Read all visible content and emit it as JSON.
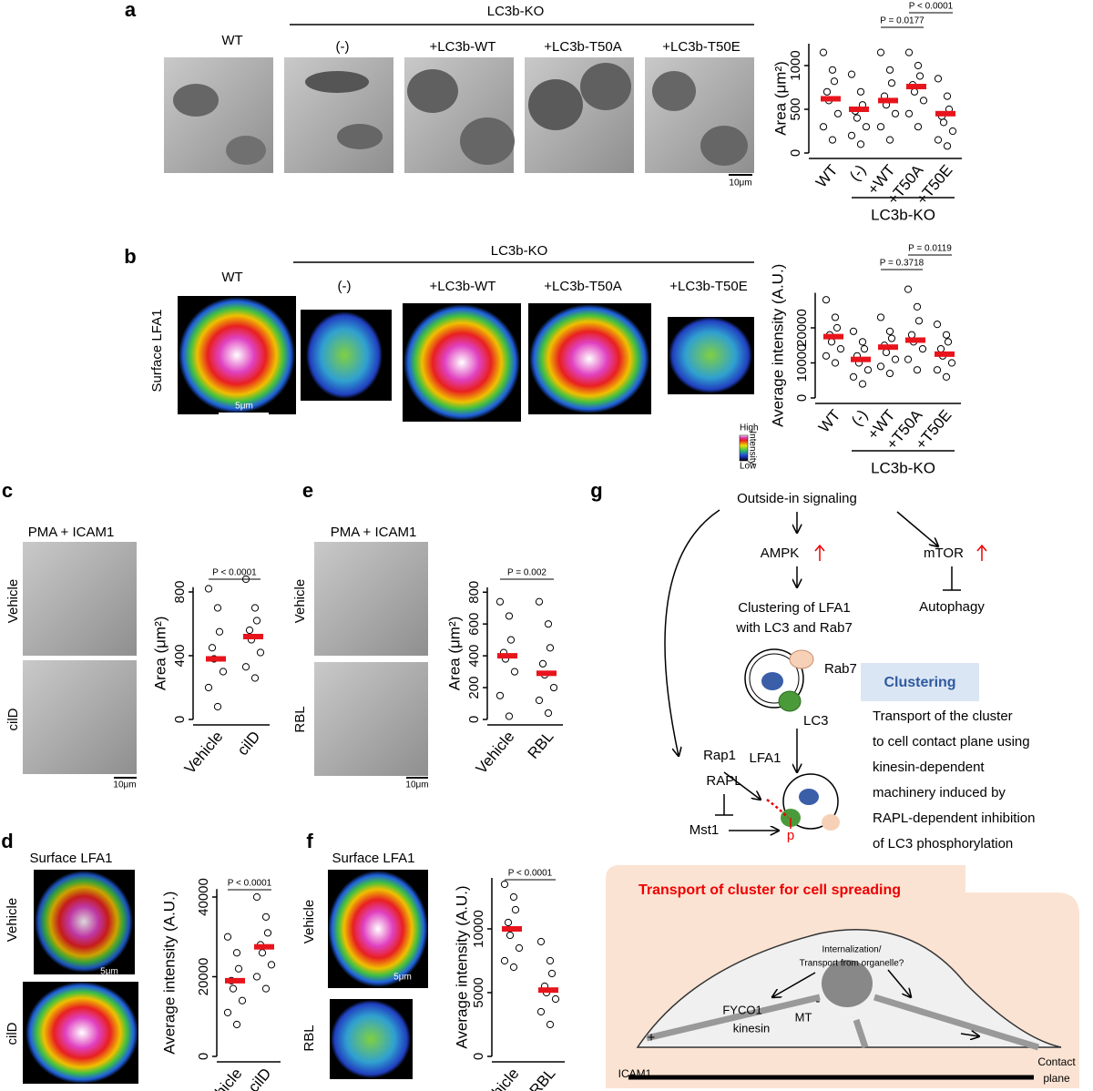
{
  "panel_a": {
    "label": "a",
    "group": "LC3b-KO",
    "columns": [
      "WT",
      "(-)",
      "+LC3b-WT",
      "+LC3b-T50A",
      "+LC3b-T50E"
    ],
    "scale_bar": "10μm",
    "chart": {
      "type": "dotplot",
      "ylabel": "Area (μm²)",
      "categories": [
        "WT",
        "(-)",
        "+WT",
        "+T50A",
        "+T50E"
      ],
      "group": "LC3b-KO",
      "ylim": [
        0,
        1250
      ],
      "yticks": [
        0,
        500,
        1000
      ],
      "means": [
        620,
        500,
        600,
        760,
        450
      ],
      "points": [
        [
          1150,
          950,
          820,
          700,
          600,
          450,
          300,
          150
        ],
        [
          900,
          700,
          550,
          480,
          400,
          300,
          200,
          100
        ],
        [
          1150,
          950,
          800,
          650,
          550,
          450,
          300,
          150
        ],
        [
          1150,
          1000,
          880,
          780,
          700,
          600,
          450,
          300
        ],
        [
          850,
          650,
          500,
          420,
          350,
          250,
          150,
          80
        ]
      ],
      "comparisons": [
        "P = 0.0177",
        "P < 0.0001"
      ]
    }
  },
  "panel_b": {
    "label": "b",
    "group": "LC3b-KO",
    "columns": [
      "WT",
      "(-)",
      "+LC3b-WT",
      "+LC3b-T50A",
      "+LC3b-T50E"
    ],
    "row_label": "Surface LFA1",
    "scale_bar": "5μm",
    "colorbar": [
      "High",
      "Intensity",
      "Low"
    ],
    "chart": {
      "type": "dotplot",
      "ylabel": "Average intensity (A.U.)",
      "categories": [
        "WT",
        "(-)",
        "+WT",
        "+T50A",
        "+T50E"
      ],
      "group": "LC3b-KO",
      "ylim": [
        0,
        30000
      ],
      "yticks": [
        0,
        10000,
        20000
      ],
      "means": [
        17500,
        11000,
        14500,
        16500,
        12500
      ],
      "points": [
        [
          28000,
          23000,
          20000,
          18000,
          16000,
          14000,
          12000,
          10000
        ],
        [
          19000,
          16000,
          14000,
          12000,
          10000,
          8000,
          6000,
          4000
        ],
        [
          23000,
          19000,
          17000,
          15000,
          13000,
          11000,
          9000,
          7000
        ],
        [
          31000,
          26000,
          22000,
          18000,
          16000,
          14000,
          11000,
          8000
        ],
        [
          21000,
          18000,
          16000,
          14000,
          12000,
          10000,
          8000,
          6000
        ]
      ],
      "comparisons": [
        "P = 0.3718",
        "P = 0.0119"
      ]
    }
  },
  "panel_c": {
    "label": "c",
    "condition": "PMA + ICAM1",
    "rows": [
      "Vehicle",
      "cilD"
    ],
    "scale_bar": "10μm",
    "chart": {
      "type": "dotplot",
      "ylabel": "Area (μm²)",
      "categories": [
        "Vehicle",
        "cilD"
      ],
      "ylim": [
        0,
        830
      ],
      "yticks": [
        0,
        400,
        800
      ],
      "means": [
        380,
        520
      ],
      "points": [
        [
          820,
          700,
          550,
          450,
          380,
          300,
          200,
          80
        ],
        [
          880,
          700,
          620,
          560,
          500,
          420,
          330,
          260
        ]
      ],
      "comparisons": [
        "P < 0.0001"
      ]
    }
  },
  "panel_d": {
    "label": "d",
    "condition": "Surface LFA1",
    "rows": [
      "Vehicle",
      "cilD"
    ],
    "scale_bar": "5μm",
    "chart": {
      "type": "dotplot",
      "ylabel": "Average intensity (A.U.)",
      "categories": [
        "Vehicle",
        "cilD"
      ],
      "ylim": [
        0,
        42000
      ],
      "yticks": [
        0,
        20000,
        40000
      ],
      "means": [
        19000,
        27500
      ],
      "points": [
        [
          30000,
          26000,
          22000,
          19000,
          17000,
          14000,
          11000,
          8000
        ],
        [
          40000,
          35000,
          31000,
          28000,
          26000,
          23000,
          20000,
          17000
        ]
      ],
      "comparisons": [
        "P < 0.0001"
      ]
    }
  },
  "panel_e": {
    "label": "e",
    "condition": "PMA + ICAM1",
    "rows": [
      "Vehicle",
      "RBL"
    ],
    "scale_bar": "10μm",
    "chart": {
      "type": "dotplot",
      "ylabel": "Area (μm²)",
      "categories": [
        "Vehicle",
        "RBL"
      ],
      "ylim": [
        0,
        830
      ],
      "yticks": [
        0,
        200,
        400,
        600,
        800
      ],
      "means": [
        400,
        290
      ],
      "points": [
        [
          740,
          650,
          500,
          420,
          380,
          300,
          150,
          20
        ],
        [
          740,
          600,
          450,
          350,
          280,
          200,
          120,
          40
        ]
      ],
      "comparisons": [
        "P = 0.002"
      ]
    }
  },
  "panel_f": {
    "label": "f",
    "condition": "Surface LFA1",
    "rows": [
      "Vehicle",
      "RBL"
    ],
    "scale_bar": "5μm",
    "chart": {
      "type": "dotplot",
      "ylabel": "Average intensity (A.U.)",
      "categories": [
        "Vehicle",
        "RBL"
      ],
      "ylim": [
        0,
        14000
      ],
      "yticks": [
        0,
        5000,
        10000
      ],
      "means": [
        10000,
        5200
      ],
      "points": [
        [
          13500,
          12500,
          11500,
          10500,
          9500,
          8500,
          7500,
          7000
        ],
        [
          9000,
          7500,
          6500,
          5500,
          5000,
          4500,
          3500,
          2500
        ]
      ],
      "comparisons": [
        "P < 0.0001"
      ]
    }
  },
  "panel_g": {
    "label": "g",
    "outside_in": "Outside-in signaling",
    "ampk": "AMPK",
    "mtor": "mTOR",
    "autophagy": "Autophagy",
    "clustering_of": [
      "Clustering of LFA1",
      "with LC3 and Rab7"
    ],
    "rab7": "Rab7",
    "lc3": "LC3",
    "lfa1": "LFA1",
    "clustering": "Clustering",
    "rap1": "Rap1",
    "transport_text": [
      "Transport of the cluster",
      "to cell contact plane using",
      "kinesin-dependent",
      "machinery induced by",
      "RAPL-dependent inhibition",
      "of LC3 phosphorylation"
    ],
    "rapl": "RAPL",
    "mst1": "Mst1",
    "p": "p",
    "box_title": "Transport of cluster for cell spreading",
    "internalization": [
      "Internalization/",
      "Transport from organelle?"
    ],
    "fyco1": "FYCO1",
    "mt": "MT",
    "kinesin": "kinesin",
    "minus": "-",
    "plus": "+",
    "icam1": "ICAM1",
    "contact": [
      "Contact",
      "plane"
    ]
  }
}
